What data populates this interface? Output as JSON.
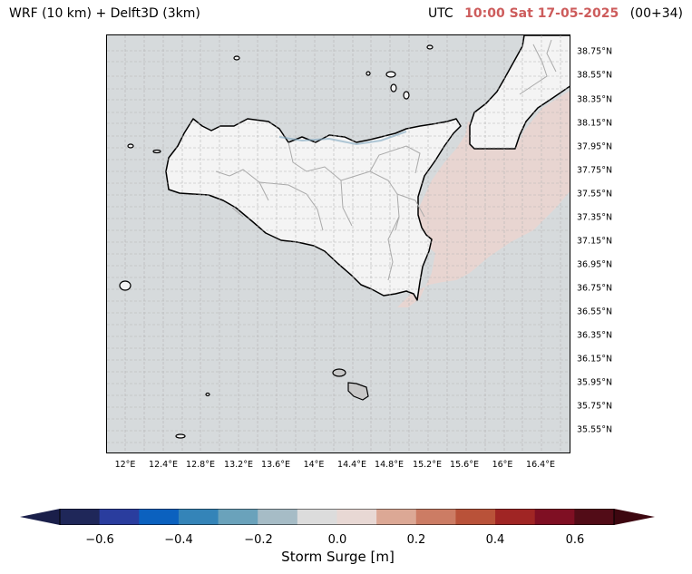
{
  "title": {
    "model": "WRF (10 km) + Delft3D (3km)",
    "utc": "UTC",
    "datetime": "10:00 Sat 17-05-2025",
    "lead": "(00+34)"
  },
  "map": {
    "lat_labels": [
      "38.75°N",
      "38.55°N",
      "38.35°N",
      "38.15°N",
      "37.95°N",
      "37.75°N",
      "37.55°N",
      "37.35°N",
      "37.15°N",
      "36.95°N",
      "36.75°N",
      "36.55°N",
      "36.35°N",
      "36.15°N",
      "35.95°N",
      "35.75°N",
      "35.55°N"
    ],
    "lon_labels": [
      "12°E",
      "12.4°E",
      "12.8°E",
      "13.2°E",
      "13.6°E",
      "14°E",
      "14.4°E",
      "14.8°E",
      "15.2°E",
      "15.6°E",
      "16°E",
      "16.4°E"
    ],
    "colors": {
      "sea": "#d6dadc",
      "land": "#f4f4f4",
      "positive_surge": "#e8d5d1",
      "negative_coast": "#7ea6bf",
      "coastline": "#000000",
      "admin_borders": "#aaaaaa"
    }
  },
  "colorbar": {
    "label": "Storm Surge [m]",
    "tick_labels": [
      "−0.6",
      "−0.4",
      "−0.2",
      "0.0",
      "0.2",
      "0.4",
      "0.6"
    ],
    "colors": [
      "#1f2759",
      "#2a3d9e",
      "#0b61bf",
      "#3484b8",
      "#6aa2bb",
      "#a6bcc6",
      "#dcdcdc",
      "#e8d8d4",
      "#dca895",
      "#cc7c64",
      "#b95239",
      "#a02524",
      "#7f0f23",
      "#520c17"
    ],
    "extend_min_color": "#1a1f4a",
    "extend_max_color": "#3d0710"
  }
}
